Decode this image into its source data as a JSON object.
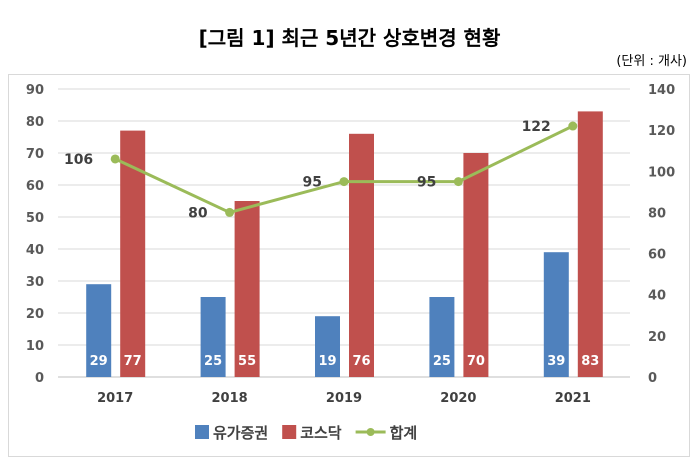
{
  "title": "[그림 1] 최근 5년간 상호변경 현황",
  "unit": "(단위 : 개사)",
  "chart_data": {
    "type": "bar",
    "title": "[그림 1] 최근 5년간 상호변경 현황",
    "categories": [
      "2017",
      "2018",
      "2019",
      "2020",
      "2021"
    ],
    "series": [
      {
        "name": "유가증권",
        "type": "bar",
        "axis": "left",
        "color": "#4f81bd",
        "values": [
          29,
          25,
          19,
          25,
          39
        ]
      },
      {
        "name": "코스닥",
        "type": "bar",
        "axis": "left",
        "color": "#c0504d",
        "values": [
          77,
          55,
          76,
          70,
          83
        ]
      },
      {
        "name": "합계",
        "type": "line",
        "axis": "right",
        "color": "#9bbb59",
        "values": [
          106,
          80,
          95,
          95,
          122
        ]
      }
    ],
    "ylim": [
      0,
      90
    ],
    "yticks": [
      0,
      10,
      20,
      30,
      40,
      50,
      60,
      70,
      80,
      90
    ],
    "y2lim": [
      0,
      140
    ],
    "y2ticks": [
      0,
      20,
      40,
      60,
      80,
      100,
      120,
      140
    ],
    "grid": true,
    "legend": "bottom"
  }
}
